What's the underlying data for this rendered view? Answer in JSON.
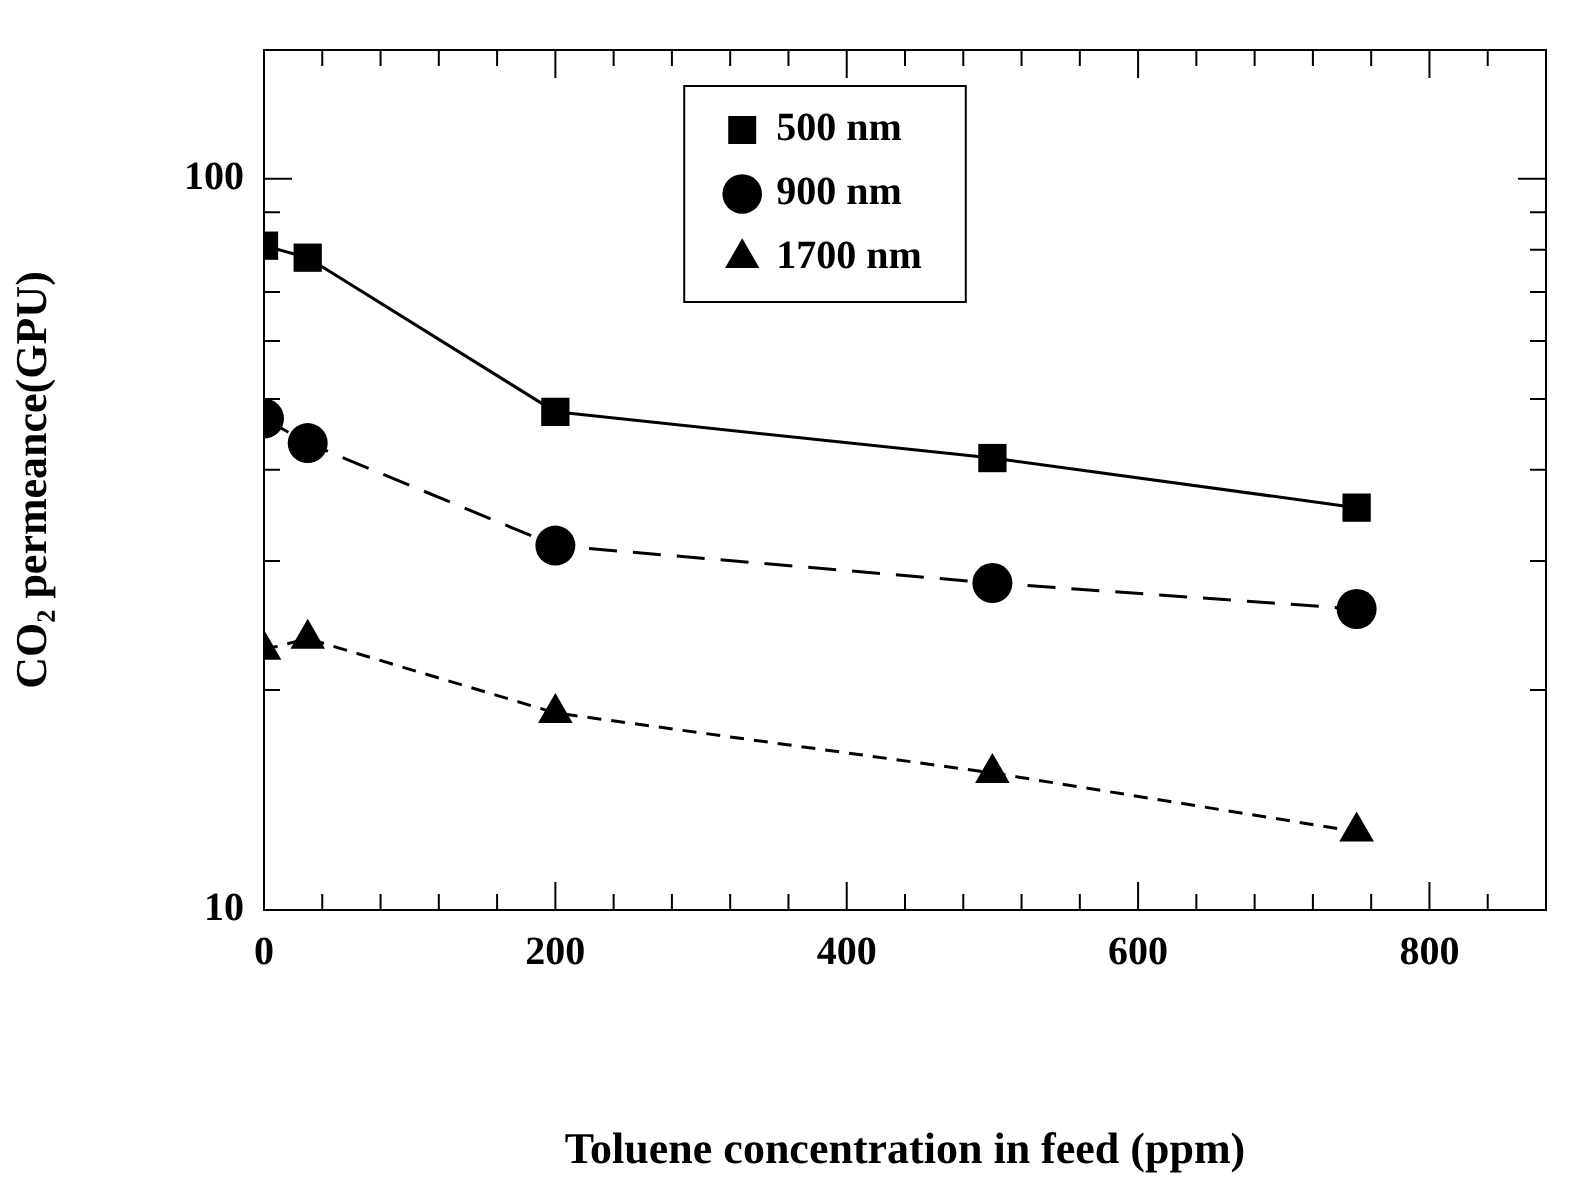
{
  "chart_data": {
    "type": "line",
    "xlabel": "Toluene concentration in feed (ppm)",
    "ylabel": "CO₂ permeance(GPU)",
    "x": [
      0,
      30,
      200,
      500,
      750
    ],
    "series": [
      {
        "name": "500 nm",
        "color": "#000000",
        "marker": "square",
        "line_style": "solid",
        "values": [
          81,
          78,
          48,
          41.5,
          35.5
        ]
      },
      {
        "name": "900 nm",
        "color": "#000000",
        "marker": "circle",
        "line_style": "dashed",
        "values": [
          47,
          43.5,
          31.5,
          28,
          25.8
        ]
      },
      {
        "name": "1700 nm",
        "color": "#000000",
        "marker": "triangle",
        "line_style": "dashed",
        "values": [
          22.7,
          23.5,
          18.6,
          15.4,
          12.8
        ]
      }
    ],
    "log": "y",
    "xlim": [
      0,
      880
    ],
    "xticks": [
      0,
      {
        "value": 40,
        "label": null
      },
      {
        "value": 80,
        "label": null
      },
      {
        "value": 120,
        "label": null
      },
      {
        "value": 160,
        "label": null
      },
      200,
      {
        "value": 240,
        "label": null
      },
      {
        "value": 280,
        "label": null
      },
      {
        "value": 320,
        "label": null
      },
      {
        "value": 360,
        "label": null
      },
      400,
      {
        "value": 440,
        "label": null
      },
      {
        "value": 480,
        "label": null
      },
      {
        "value": 520,
        "label": null
      },
      {
        "value": 560,
        "label": null
      },
      600,
      {
        "value": 640,
        "label": null
      },
      {
        "value": 680,
        "label": null
      },
      {
        "value": 720,
        "label": null
      },
      {
        "value": 760,
        "label": null
      },
      800,
      {
        "value": 840,
        "label": null
      },
      {
        "value": 880,
        "label": null
      }
    ],
    "ylim": [
      10,
      150
    ],
    "yticks": [
      10,
      {
        "value": 20,
        "label": null
      },
      {
        "value": 30,
        "label": null
      },
      {
        "value": 40,
        "label": null
      },
      {
        "value": 50,
        "label": null
      },
      {
        "value": 60,
        "label": null
      },
      {
        "value": 70,
        "label": null
      },
      {
        "value": 80,
        "label": null
      },
      {
        "value": 90,
        "label": null
      },
      100
    ],
    "grid": false,
    "legend": "top"
  }
}
